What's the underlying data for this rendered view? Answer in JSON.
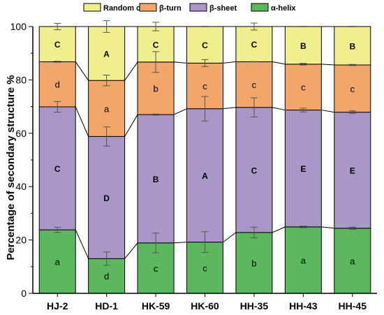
{
  "chart_data": {
    "type": "bar",
    "stacked": true,
    "title": "",
    "xlabel": "",
    "ylabel": "Percentage of secondary structure %",
    "ylim": [
      0,
      100
    ],
    "yticks": [
      0,
      20,
      40,
      60,
      80,
      100
    ],
    "legend_position": "top",
    "categories": [
      "HJ-2",
      "HD-1",
      "HK-59",
      "HK-60",
      "HH-35",
      "HH-43",
      "HH-45"
    ],
    "legend_order": [
      "Random coil",
      "β-turn",
      "β-sheet",
      "α-helix"
    ],
    "series": [
      {
        "name": "α-helix",
        "color": "#5cb85f",
        "values": [
          23.8,
          13.0,
          18.9,
          19.2,
          22.8,
          24.9,
          24.4
        ],
        "errors": [
          1.0,
          2.5,
          3.7,
          3.9,
          2.0,
          0.3,
          0.4
        ],
        "letters": [
          "a",
          "d",
          "c",
          "c",
          "b",
          "a",
          "a"
        ],
        "letter_weight": "normal"
      },
      {
        "name": "β-sheet",
        "color": "#a898c8",
        "values": [
          46.1,
          45.8,
          48.1,
          50.0,
          46.9,
          43.8,
          43.5
        ],
        "errors": [
          2.0,
          3.6,
          0.2,
          4.6,
          3.6,
          0.7,
          0.5
        ],
        "letters": [
          "C",
          "D",
          "B",
          "A",
          "C",
          "E",
          "E"
        ],
        "letter_weight": "bold"
      },
      {
        "name": "β-turn",
        "color": "#f2a66c",
        "values": [
          16.9,
          21.0,
          19.7,
          17.1,
          17.1,
          17.2,
          17.7
        ],
        "errors": [
          0.2,
          2.0,
          3.9,
          1.3,
          0.1,
          0.3,
          0.2
        ],
        "letters": [
          "d",
          "a",
          "b",
          "c",
          "c",
          "c",
          "c"
        ],
        "letter_weight": "normal"
      },
      {
        "name": "Random coil",
        "color": "#f0ef8e",
        "values": [
          13.2,
          20.2,
          13.3,
          13.7,
          13.2,
          14.1,
          14.4
        ],
        "errors": [
          1.2,
          2.2,
          1.6,
          0.1,
          1.3,
          0.1,
          0.1
        ],
        "letters": [
          "C",
          "A",
          "C",
          "C",
          "C",
          "B",
          "B"
        ],
        "letter_weight": "bold"
      }
    ]
  }
}
